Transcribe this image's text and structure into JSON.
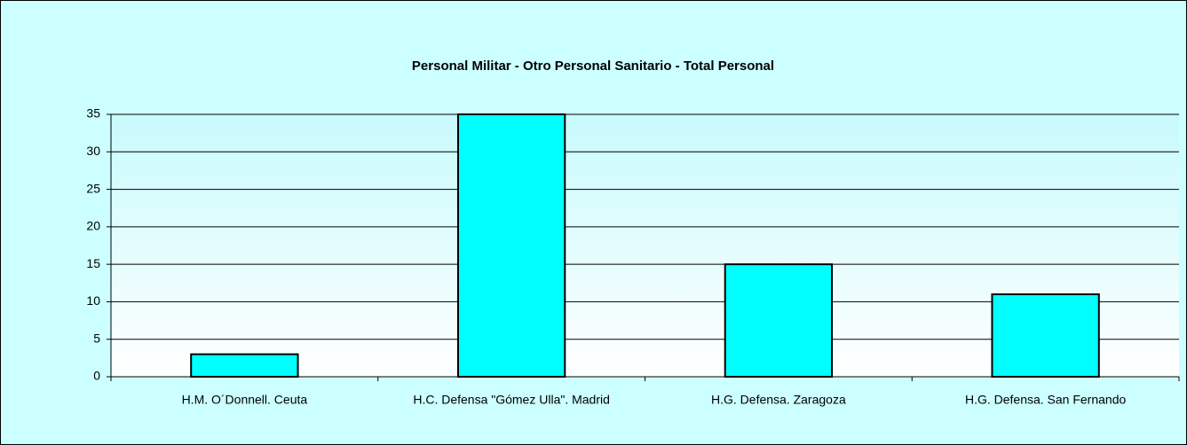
{
  "chart_data": {
    "type": "bar",
    "title": "Personal Militar - Otro Personal Sanitario - Total Personal",
    "categories": [
      "H.M. O´Donnell. Ceuta",
      "H.C. Defensa \"Gómez Ulla\". Madrid",
      "H.G. Defensa. Zaragoza",
      "H.G. Defensa. San Fernando"
    ],
    "values": [
      3,
      35,
      15,
      11
    ],
    "color": "#00ffff",
    "ylim": [
      0,
      35
    ],
    "yticks": [
      0,
      5,
      10,
      15,
      20,
      25,
      30,
      35
    ],
    "grid": true
  }
}
